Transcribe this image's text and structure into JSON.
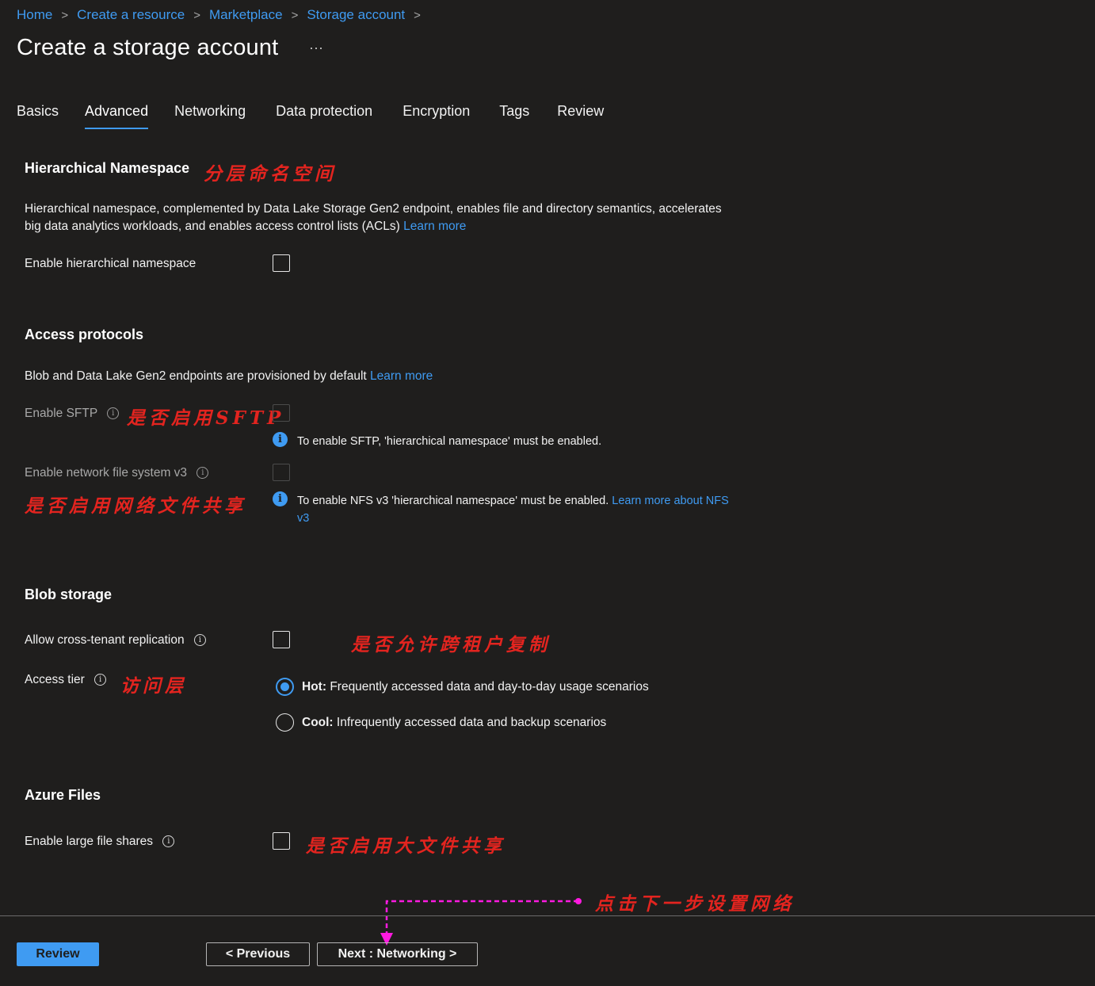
{
  "breadcrumb": [
    "Home",
    "Create a resource",
    "Marketplace",
    "Storage account"
  ],
  "page_title": "Create a storage account",
  "more": "···",
  "tabs": [
    "Basics",
    "Advanced",
    "Networking",
    "Data protection",
    "Encryption",
    "Tags",
    "Review"
  ],
  "active_tab": "Advanced",
  "hierarchical": {
    "title": "Hierarchical Namespace",
    "annotation": "分层命名空间",
    "desc_line1": "Hierarchical namespace, complemented by Data Lake Storage Gen2 endpoint, enables file and directory semantics, accelerates",
    "desc_line2": "big data analytics workloads, and enables access control lists (ACLs)",
    "learn_more": "Learn more",
    "enable_label": "Enable hierarchical namespace"
  },
  "access": {
    "title": "Access protocols",
    "desc": "Blob and Data Lake Gen2 endpoints are provisioned by default",
    "learn_more": "Learn more",
    "sftp_label": "Enable SFTP",
    "sftp_annotation": "是否启用SFTP",
    "sftp_note": "To enable SFTP, 'hierarchical namespace' must be enabled.",
    "nfs_label": "Enable network file system v3",
    "nfs_annotation": "是否启用网络文件共享",
    "nfs_note": "To enable NFS v3 'hierarchical namespace' must be enabled.",
    "nfs_link_line1": "Learn more about NFS",
    "nfs_link_line2": "v3"
  },
  "blob": {
    "title": "Blob storage",
    "cross_tenant_label": "Allow cross-tenant replication",
    "cross_tenant_annotation": "是否允许跨租户复制",
    "tier_label": "Access tier",
    "tier_annotation": "访问层",
    "hot_bold": "Hot:",
    "hot_text": "Frequently accessed data and day-to-day usage scenarios",
    "cool_bold": "Cool:",
    "cool_text": "Infrequently accessed data and backup scenarios"
  },
  "files": {
    "title": "Azure Files",
    "large_label": "Enable large file shares",
    "large_annotation": "是否启用大文件共享"
  },
  "footer": {
    "next_annotation": "点击下一步设置网络",
    "review": "Review",
    "previous": "< Previous",
    "next": "Next : Networking >"
  },
  "colors": {
    "accent": "#3f9bf2",
    "annotation": "#e3241f",
    "arrow": "#ff1ae0",
    "background": "#1f1e1d"
  }
}
